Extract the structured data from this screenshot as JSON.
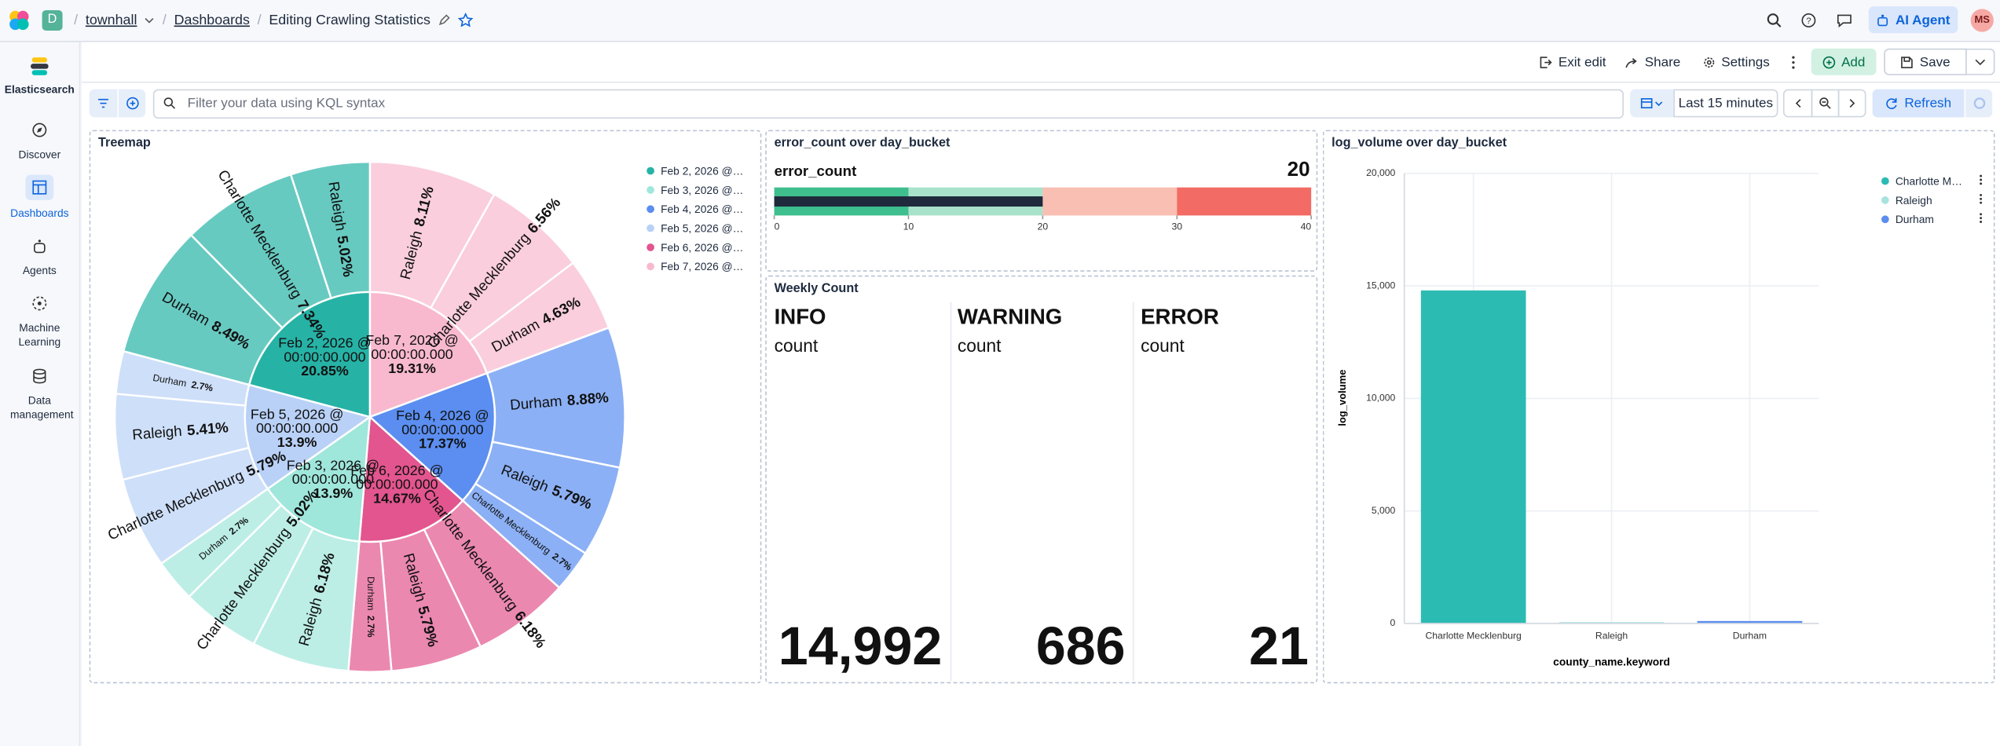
{
  "header": {
    "org": "D",
    "space": "townhall",
    "breadcrumb": "Dashboards",
    "page": "Editing Crawling Statistics",
    "ai": "AI Agent",
    "user": "MS"
  },
  "nav": [
    "Elasticsearch",
    "Discover",
    "Dashboards",
    "Agents",
    "Machine Learning",
    "Data management"
  ],
  "toolbar": {
    "exit": "Exit edit",
    "share": "Share",
    "settings": "Settings",
    "add": "Add",
    "save": "Save"
  },
  "query": {
    "placeholder": "Filter your data using KQL syntax",
    "time": "Last 15 minutes",
    "refresh": "Refresh"
  },
  "chart_data": [
    {
      "type": "sunburst",
      "title": "Treemap",
      "categories": [
        "Feb 7, 2026 @ 00:00:00.000",
        "Feb 4, 2026 @ 00:00:00.000",
        "Feb 6, 2026 @ 00:00:00.000",
        "Feb 3, 2026 @ 00:00:00.000",
        "Feb 5, 2026 @ 00:00:00.000",
        "Feb 2, 2026 @ 00:00:00.000"
      ],
      "values": [
        19.31,
        17.37,
        14.67,
        13.9,
        13.9,
        20.85
      ],
      "value_labels": [
        "19.31%",
        "17.37%",
        "14.67%",
        "13.9%",
        "13.9%",
        "20.85%"
      ],
      "colors": [
        "#f8b9cf",
        "#5b8ef0",
        "#e2558e",
        "#9fe6db",
        "#b9d1f7",
        "#26b3a6"
      ],
      "legend_order": [
        5,
        3,
        1,
        4,
        2,
        0
      ],
      "children": [
        {
          "names": [
            "Raleigh",
            "Charlotte Mecklenburg",
            "Durham"
          ],
          "values": [
            8.11,
            6.56,
            4.63
          ],
          "value_labels": [
            "8.11%",
            "6.56%",
            "4.63%"
          ]
        },
        {
          "names": [
            "Durham",
            "Raleigh",
            "Charlotte Mecklenburg"
          ],
          "values": [
            8.88,
            5.79,
            2.7
          ],
          "value_labels": [
            "8.88%",
            "5.79%",
            "2.7%"
          ]
        },
        {
          "names": [
            "Charlotte Mecklenburg",
            "Raleigh",
            "Durham"
          ],
          "values": [
            6.18,
            5.79,
            2.7
          ],
          "value_labels": [
            "6.18%",
            "5.79%",
            "2.7%"
          ]
        },
        {
          "names": [
            "Raleigh",
            "Charlotte Mecklenburg",
            "Durham"
          ],
          "values": [
            6.18,
            5.02,
            2.7
          ],
          "value_labels": [
            "6.18%",
            "5.02%",
            "2.7%"
          ]
        },
        {
          "names": [
            "Charlotte Mecklenburg",
            "Raleigh",
            "Durham"
          ],
          "values": [
            5.79,
            5.41,
            2.7
          ],
          "value_labels": [
            "5.79%",
            "5.41%",
            "2.7%"
          ]
        },
        {
          "names": [
            "Durham",
            "Charlotte Mecklenburg",
            "Raleigh"
          ],
          "values": [
            8.49,
            7.34,
            5.02
          ],
          "value_labels": [
            "8.49%",
            "7.34%",
            "5.02%"
          ]
        }
      ]
    },
    {
      "type": "bullet",
      "title": "error_count over day_bucket",
      "label": "error_count",
      "value": 20,
      "color": "#1f2a3c",
      "xlim": [
        0,
        40
      ],
      "xticks": [
        0,
        10,
        20,
        30,
        40
      ],
      "band_colors": [
        "#3fbf8e",
        "#a9e2cb",
        "#f9bfb2",
        "#f26b64"
      ]
    },
    {
      "type": "metric",
      "title": "Weekly Count",
      "items": [
        {
          "name": "INFO",
          "label": "count",
          "value": 14992,
          "value_label": "14,992"
        },
        {
          "name": "WARNING",
          "label": "count",
          "value": 686,
          "value_label": "686"
        },
        {
          "name": "ERROR",
          "label": "count",
          "value": 21,
          "value_label": "21"
        }
      ]
    },
    {
      "type": "bar",
      "title": "log_volume over day_bucket",
      "categories": [
        "Charlotte Mecklenburg",
        "Raleigh",
        "Durham"
      ],
      "values": [
        14800,
        60,
        110
      ],
      "colors": [
        "#2bbbb3",
        "#a6e3dd",
        "#5b8ef0"
      ],
      "ylim": [
        0,
        20000
      ],
      "yticks": [
        0,
        {
          "value": 5000,
          "label": "5,000"
        },
        {
          "value": 10000,
          "label": "10,000"
        },
        {
          "value": 15000,
          "label": "15,000"
        },
        {
          "value": 20000,
          "label": "20,000"
        }
      ],
      "ylabel": "log_volume",
      "xlabel": "county_name.keyword",
      "grid": true,
      "legend": "top-right"
    }
  ]
}
